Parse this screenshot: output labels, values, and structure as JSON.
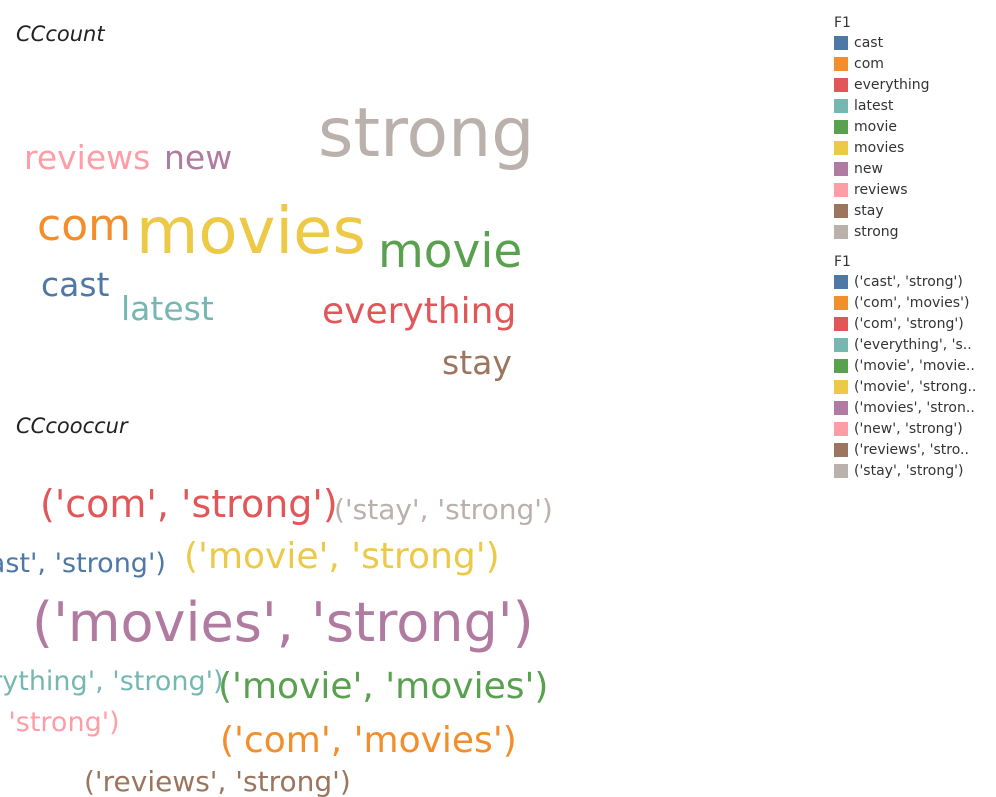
{
  "chart_data": [
    {
      "type": "wordcloud",
      "title": "CCcount",
      "legend": {
        "title": "F1",
        "placement": "right"
      },
      "words": [
        {
          "text": "strong",
          "color": "#BAB0AC"
        },
        {
          "text": "reviews",
          "color": "#FF9DA7"
        },
        {
          "text": "new",
          "color": "#B07AA1"
        },
        {
          "text": "com",
          "color": "#F28E2B"
        },
        {
          "text": "movies",
          "color": "#EDC948"
        },
        {
          "text": "movie",
          "color": "#59A14F"
        },
        {
          "text": "cast",
          "color": "#4E79A7"
        },
        {
          "text": "latest",
          "color": "#76B7B2"
        },
        {
          "text": "everything",
          "color": "#E15759"
        },
        {
          "text": "stay",
          "color": "#9C755F"
        }
      ],
      "legend_items": [
        {
          "label": "cast",
          "color": "#4E79A7"
        },
        {
          "label": "com",
          "color": "#F28E2B"
        },
        {
          "label": "everything",
          "color": "#E15759"
        },
        {
          "label": "latest",
          "color": "#76B7B2"
        },
        {
          "label": "movie",
          "color": "#59A14F"
        },
        {
          "label": "movies",
          "color": "#EDC948"
        },
        {
          "label": "new",
          "color": "#B07AA1"
        },
        {
          "label": "reviews",
          "color": "#FF9DA7"
        },
        {
          "label": "stay",
          "color": "#9C755F"
        },
        {
          "label": "strong",
          "color": "#BAB0AC"
        }
      ]
    },
    {
      "type": "wordcloud",
      "title": "CCcooccur",
      "legend": {
        "title": "F1",
        "placement": "right"
      },
      "words": [
        {
          "text": "('com', 'strong')",
          "color": "#E15759"
        },
        {
          "text": "('stay', 'strong')",
          "color": "#BAB0AC"
        },
        {
          "text": "('cast', 'strong')",
          "color": "#4E79A7"
        },
        {
          "text": "('movie', 'strong')",
          "color": "#EDC948"
        },
        {
          "text": "('movies', 'strong')",
          "color": "#B07AA1"
        },
        {
          "text": "('everything', 'strong')",
          "color": "#76B7B2"
        },
        {
          "text": "('movie', 'movies')",
          "color": "#59A14F"
        },
        {
          "text": "('new', 'strong')",
          "color": "#FF9DA7"
        },
        {
          "text": "('com', 'movies')",
          "color": "#F28E2B"
        },
        {
          "text": "('reviews', 'strong')",
          "color": "#9C755F"
        }
      ],
      "legend_items": [
        {
          "label": "('cast', 'strong')",
          "color": "#4E79A7"
        },
        {
          "label": "('com', 'movies')",
          "color": "#F28E2B"
        },
        {
          "label": "('com', 'strong')",
          "color": "#E15759"
        },
        {
          "label": "('everything', 's..",
          "color": "#76B7B2"
        },
        {
          "label": "('movie', 'movie..",
          "color": "#59A14F"
        },
        {
          "label": "('movie', 'strong..",
          "color": "#EDC948"
        },
        {
          "label": "('movies', 'stron..",
          "color": "#B07AA1"
        },
        {
          "label": "('new', 'strong')",
          "color": "#FF9DA7"
        },
        {
          "label": "('reviews', 'stro..",
          "color": "#9C755F"
        },
        {
          "label": "('stay', 'strong')",
          "color": "#BAB0AC"
        }
      ]
    }
  ]
}
